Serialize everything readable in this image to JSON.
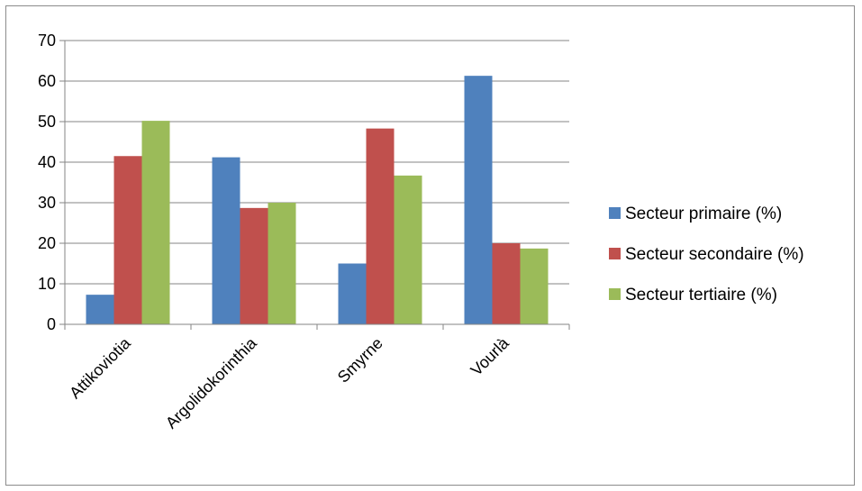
{
  "chart_data": {
    "type": "bar",
    "categories": [
      "Attikoviotia",
      "Argolidokorinthia",
      "Smyrne",
      "Vourlà"
    ],
    "series": [
      {
        "name": "Secteur primaire (%)",
        "color": "#4f81bd",
        "values": [
          7.3,
          41.2,
          15.0,
          61.3
        ]
      },
      {
        "name": "Secteur secondaire (%)",
        "color": "#c0504d",
        "values": [
          41.5,
          28.7,
          48.3,
          20.0
        ]
      },
      {
        "name": "Secteur tertiaire (%)",
        "color": "#9bbb59",
        "values": [
          50.2,
          30.0,
          36.7,
          18.7
        ]
      }
    ],
    "ylim": [
      0,
      70
    ],
    "yticks": [
      0,
      10,
      20,
      30,
      40,
      50,
      60,
      70
    ],
    "grid": true,
    "legend_position": "right",
    "title": "",
    "xlabel": "",
    "ylabel": ""
  }
}
